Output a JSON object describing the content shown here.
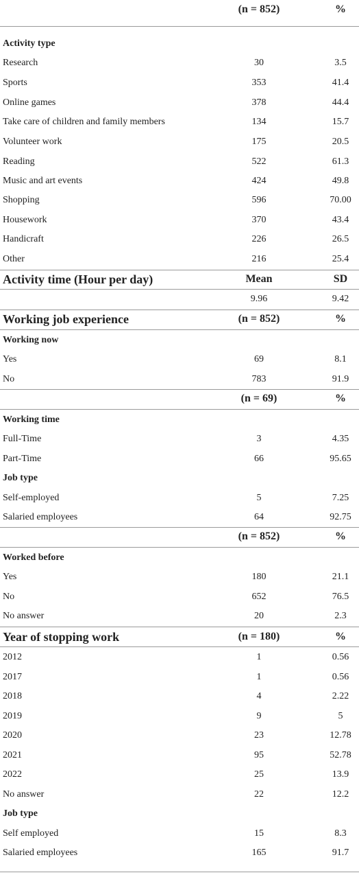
{
  "table": {
    "rows": [
      [
        "(n = 852)",
        "%"
      ],
      [
        "Activity type"
      ],
      [
        "Research",
        "30",
        "3.5"
      ],
      [
        "Sports",
        "353",
        "41.4"
      ],
      [
        "Online games",
        "378",
        "44.4"
      ],
      [
        "Take care of children and family members",
        "134",
        "15.7"
      ],
      [
        "Volunteer work",
        "175",
        "20.5"
      ],
      [
        "Reading",
        "522",
        "61.3"
      ],
      [
        "Music and art events",
        "424",
        "49.8"
      ],
      [
        "Shopping",
        "596",
        "70.00"
      ],
      [
        "Housework",
        "370",
        "43.4"
      ],
      [
        "Handicraft",
        "226",
        "26.5"
      ],
      [
        "Other",
        "216",
        "25.4"
      ],
      [
        "Activity time (Hour per day)",
        "Mean",
        "SD"
      ],
      [
        "9.96",
        "9.42"
      ],
      [
        "Working job experience",
        "(n = 852)",
        "%"
      ],
      [
        "Working now"
      ],
      [
        "Yes",
        "69",
        "8.1"
      ],
      [
        "No",
        "783",
        "91.9"
      ],
      [
        "(n = 69)",
        "%"
      ],
      [
        "Working time"
      ],
      [
        "Full-Time",
        "3",
        "4.35"
      ],
      [
        "Part-Time",
        "66",
        "95.65"
      ],
      [
        "Job type"
      ],
      [
        "Self-employed",
        "5",
        "7.25"
      ],
      [
        "Salaried employees",
        "64",
        "92.75"
      ],
      [
        "(n = 852)",
        "%"
      ],
      [
        "Worked before"
      ],
      [
        "Yes",
        "180",
        "21.1"
      ],
      [
        "No",
        "652",
        "76.5"
      ],
      [
        "No answer",
        "20",
        "2.3"
      ],
      [
        "Year of stopping work",
        "(n = 180)",
        "%"
      ],
      [
        "2012",
        "1",
        "0.56"
      ],
      [
        "2017",
        "1",
        "0.56"
      ],
      [
        "2018",
        "4",
        "2.22"
      ],
      [
        "2019",
        "9",
        "5"
      ],
      [
        "2020",
        "23",
        "12.78"
      ],
      [
        "2021",
        "95",
        "52.78"
      ],
      [
        "2022",
        "25",
        "13.9"
      ],
      [
        "No answer",
        "22",
        "12.2"
      ],
      [
        "Job type"
      ],
      [
        "Self employed",
        "15",
        "8.3"
      ],
      [
        "Salaried employees",
        "165",
        "91.7"
      ]
    ]
  }
}
